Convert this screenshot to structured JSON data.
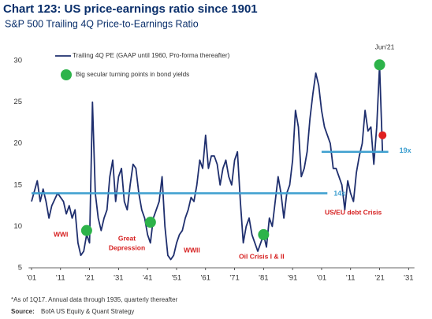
{
  "chart_data": {
    "type": "line",
    "title": "Chart 123: US price-earnings ratio since 1901",
    "subtitle": "S&P 500 Trailing 4Q Price-to-Earnings Ratio",
    "series": [
      {
        "name": "Trailing 4Q PE (GAAP until 1960, Pro-forma thereafter)",
        "color": "#1f2f6e",
        "x": [
          1901,
          1903,
          1904,
          1905,
          1906,
          1907,
          1908,
          1910,
          1912,
          1913,
          1914,
          1915,
          1916,
          1917,
          1918,
          1919,
          1920,
          1921,
          1922,
          1923,
          1924,
          1925,
          1926,
          1927,
          1928,
          1929,
          1930,
          1931,
          1932,
          1933,
          1934,
          1935,
          1936,
          1937,
          1938,
          1939,
          1940,
          1941,
          1942,
          1943,
          1944,
          1945,
          1946,
          1947,
          1948,
          1949,
          1950,
          1951,
          1952,
          1953,
          1954,
          1955,
          1956,
          1957,
          1958,
          1959,
          1960,
          1961,
          1962,
          1963,
          1964,
          1965,
          1966,
          1967,
          1968,
          1969,
          1970,
          1971,
          1972,
          1973,
          1974,
          1975,
          1976,
          1977,
          1978,
          1979,
          1980,
          1981,
          1982,
          1983,
          1984,
          1985,
          1986,
          1987,
          1988,
          1989,
          1990,
          1991,
          1992,
          1993,
          1994,
          1995,
          1996,
          1997,
          1998,
          1999,
          2000,
          2001,
          2002,
          2003,
          2004,
          2005,
          2006,
          2007,
          2008,
          2009,
          2010,
          2011,
          2012,
          2013,
          2014,
          2015,
          2016,
          2017,
          2018,
          2019,
          2020,
          2021,
          2021.5,
          2022
        ],
        "values": [
          13,
          15.5,
          13,
          14.5,
          13,
          11,
          12.5,
          14,
          13,
          11.5,
          12.5,
          11,
          12,
          8,
          6.5,
          7,
          9,
          8,
          25,
          14,
          11,
          9.5,
          11,
          12,
          16,
          18,
          13,
          16,
          17,
          13,
          12,
          15,
          17.5,
          17,
          14,
          12,
          11,
          9,
          8,
          11,
          12,
          13,
          16,
          10,
          6.5,
          6,
          6.5,
          8,
          9,
          9.5,
          11,
          12,
          13.5,
          13,
          15,
          18,
          17,
          21,
          17,
          18.5,
          18.5,
          17.5,
          15,
          17,
          18,
          16,
          15,
          18,
          19,
          13,
          8,
          10,
          11,
          9,
          8,
          7,
          8,
          9,
          7.5,
          11,
          10,
          13,
          16,
          14,
          11,
          14,
          15,
          18,
          24,
          22,
          16,
          17,
          19,
          23,
          26,
          28.5,
          27,
          24,
          22,
          21,
          20,
          17,
          17,
          16,
          15,
          12,
          15.5,
          14,
          13,
          16.5,
          18.5,
          20,
          24,
          21.5,
          22,
          17.5,
          22,
          29.5,
          24,
          19
        ]
      }
    ],
    "markers": [
      {
        "name": "Big secular turning points in bond yields",
        "color": "#2db34a",
        "x": [
          1920,
          1942,
          1981,
          2021
        ],
        "values": [
          9.5,
          10.5,
          9,
          29.5
        ]
      },
      {
        "color": "#e02020",
        "x": [
          2022
        ],
        "values": [
          21
        ]
      }
    ],
    "reference_lines": [
      {
        "value": 14,
        "label": "14x",
        "from": 1901,
        "to": 2003,
        "color": "#3fa0d0"
      },
      {
        "value": 19,
        "label": "19x",
        "from": 2001,
        "to": 2024,
        "color": "#3fa0d0"
      }
    ],
    "annotations": [
      "WWI",
      "Great",
      "Depression",
      "WWII",
      "Oil Crisis I & II",
      "US/EU debt Crisis",
      "Jun'21"
    ],
    "xlim": [
      1900,
      2033
    ],
    "ylim": [
      5,
      31
    ],
    "xticks": [
      {
        "value": 1901,
        "label": "'01"
      },
      {
        "value": 1911,
        "label": "'11"
      },
      {
        "value": 1921,
        "label": "'21"
      },
      {
        "value": 1931,
        "label": "'31"
      },
      {
        "value": 1941,
        "label": "'41"
      },
      {
        "value": 1951,
        "label": "'51"
      },
      {
        "value": 1961,
        "label": "'61"
      },
      {
        "value": 1971,
        "label": "'71"
      },
      {
        "value": 1981,
        "label": "'81"
      },
      {
        "value": 1991,
        "label": "'91"
      },
      {
        "value": 2001,
        "label": "'01"
      },
      {
        "value": 2011,
        "label": "'11"
      },
      {
        "value": 2021,
        "label": "'21"
      },
      {
        "value": 2031,
        "label": "'31"
      }
    ],
    "yticks": [
      5,
      10,
      15,
      20,
      25,
      30
    ],
    "footnote": "*As of 1Q17. Annual data through 1935, quarterly thereafter",
    "source_label": "Source:",
    "source": "BofA US Equity & Quant Strategy"
  }
}
